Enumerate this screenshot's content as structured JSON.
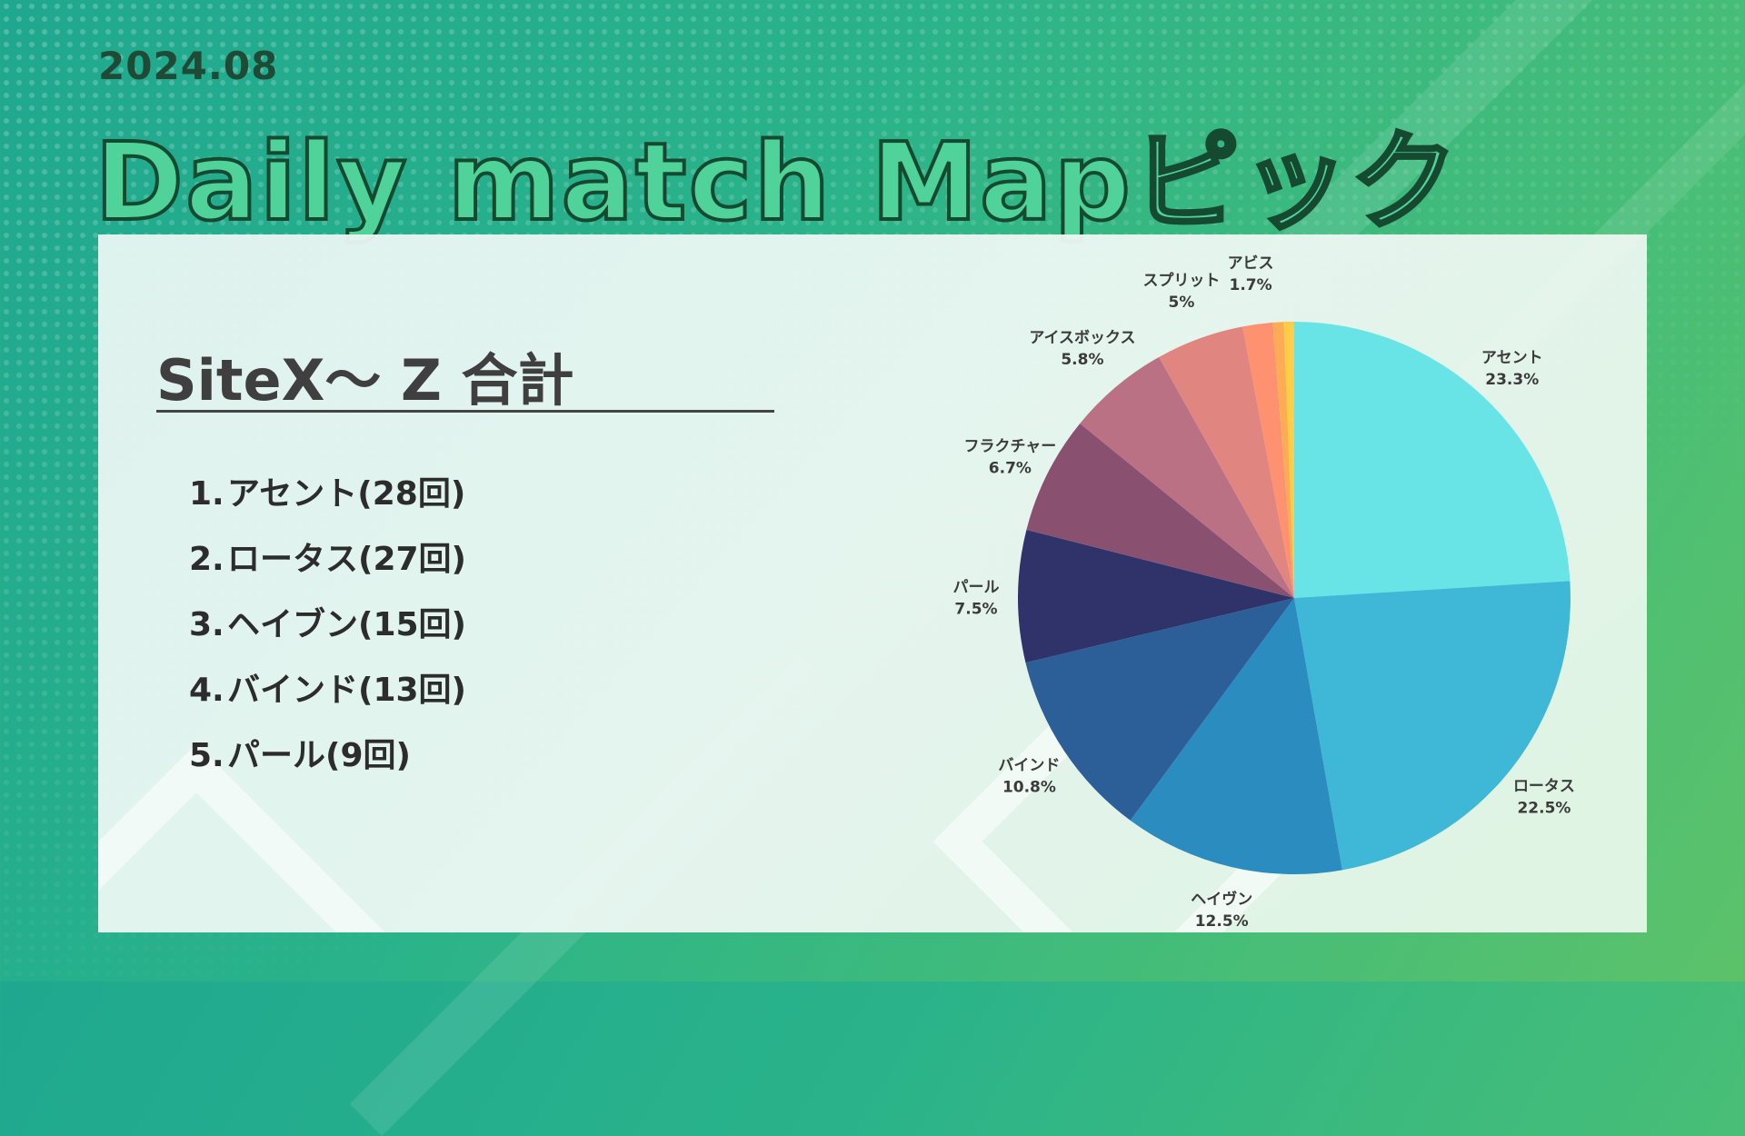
{
  "header": {
    "date": "2024.08",
    "title": "Daily match Mapピック"
  },
  "panel": {
    "subtitle": "SiteX～ Z 合計",
    "ranking": [
      {
        "rank": "1.",
        "text": "アセント(28回)"
      },
      {
        "rank": "2.",
        "text": "ロータス(27回)"
      },
      {
        "rank": "3.",
        "text": "ヘイブン(15回)"
      },
      {
        "rank": "4.",
        "text": "バインド(13回)"
      },
      {
        "rank": "5.",
        "text": "パール(9回)"
      }
    ]
  },
  "chart_data": {
    "type": "pie",
    "categories": [
      "アセント",
      "ロータス",
      "ヘイヴン",
      "バインド",
      "パール",
      "フラクチャー",
      "アイスボックス",
      "スプリット",
      "アビス",
      ""
    ],
    "values": [
      23.3,
      22.5,
      12.5,
      10.8,
      7.5,
      6.7,
      5.8,
      5.0,
      1.7,
      1.2
    ],
    "labels": [
      "23.3%",
      "22.5%",
      "12.5%",
      "10.8%",
      "7.5%",
      "6.7%",
      "5.8%",
      "5%",
      "1.7%",
      ""
    ],
    "colors": [
      "#68e4e6",
      "#3fb7d7",
      "#2b8cbf",
      "#2c5f98",
      "#2f336a",
      "#8a506f",
      "#b97183",
      "#e18581",
      "#fe9270",
      "#fdac55",
      "#ffcd48"
    ],
    "start_angle": "12 o'clock",
    "direction": "clockwise",
    "legend": "none"
  }
}
